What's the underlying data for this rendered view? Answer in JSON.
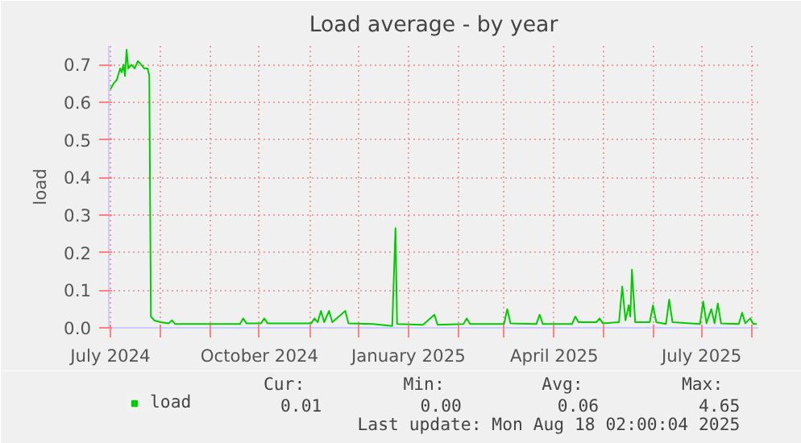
{
  "chart_data": {
    "type": "line",
    "title": "Load average - by year",
    "ylabel": "load",
    "xlim": [
      "2024-06-30",
      "2025-08-05"
    ],
    "xticks": [
      {
        "value": "2024-07-01",
        "label": "July 2024"
      },
      {
        "value": "2024-08-01",
        "label": null
      },
      {
        "value": "2024-09-01",
        "label": null
      },
      {
        "value": "2024-10-01",
        "label": "October 2024"
      },
      {
        "value": "2024-11-01",
        "label": null
      },
      {
        "value": "2024-12-01",
        "label": null
      },
      {
        "value": "2025-01-01",
        "label": "January 2025"
      },
      {
        "value": "2025-02-01",
        "label": null
      },
      {
        "value": "2025-03-01",
        "label": null
      },
      {
        "value": "2025-04-01",
        "label": "April 2025"
      },
      {
        "value": "2025-05-01",
        "label": null
      },
      {
        "value": "2025-06-01",
        "label": null
      },
      {
        "value": "2025-07-01",
        "label": "July 2025"
      },
      {
        "value": "2025-08-01",
        "label": null
      }
    ],
    "ylim": [
      0,
      0.75
    ],
    "yticks": [
      {
        "value": 0,
        "label": "0.0"
      },
      {
        "value": 0.1,
        "label": "0.1"
      },
      {
        "value": 0.2,
        "label": "0.2"
      },
      {
        "value": 0.3,
        "label": "0.3"
      },
      {
        "value": 0.4,
        "label": "0.4"
      },
      {
        "value": 0.5,
        "label": "0.5"
      },
      {
        "value": 0.6,
        "label": "0.6"
      },
      {
        "value": 0.7,
        "label": "0.7"
      }
    ],
    "grid": true,
    "legend": "bottom left",
    "line_style": "solid",
    "x": [
      "2024-07-01",
      "2024-07-03",
      "2024-07-05",
      "2024-07-07",
      "2024-07-08",
      "2024-07-09",
      "2024-07-10",
      "2024-07-11",
      "2024-07-12",
      "2024-07-14",
      "2024-07-16",
      "2024-07-18",
      "2024-07-20",
      "2024-07-22",
      "2024-07-24",
      "2024-07-25",
      "2024-07-26",
      "2024-07-28",
      "2024-08-01",
      "2024-08-06",
      "2024-08-08",
      "2024-08-10",
      "2024-09-01",
      "2024-09-19",
      "2024-09-21",
      "2024-09-23",
      "2024-10-02",
      "2024-10-04",
      "2024-10-06",
      "2024-11-02",
      "2024-11-04",
      "2024-11-06",
      "2024-11-08",
      "2024-11-10",
      "2024-11-13",
      "2024-11-15",
      "2024-11-23",
      "2024-11-25",
      "2024-12-10",
      "2024-12-22",
      "2024-12-24",
      "2024-12-25",
      "2025-01-10",
      "2025-01-17",
      "2025-01-19",
      "2025-02-04",
      "2025-02-06",
      "2025-02-08",
      "2025-03-01",
      "2025-03-03",
      "2025-03-05",
      "2025-03-21",
      "2025-03-23",
      "2025-03-25",
      "2025-04-12",
      "2025-04-14",
      "2025-04-16",
      "2025-04-27",
      "2025-04-29",
      "2025-05-01",
      "2025-05-11",
      "2025-05-13",
      "2025-05-15",
      "2025-05-17",
      "2025-05-18",
      "2025-05-19",
      "2025-05-21",
      "2025-05-30",
      "2025-06-01",
      "2025-06-03",
      "2025-06-09",
      "2025-06-11",
      "2025-06-13",
      "2025-06-30",
      "2025-07-02",
      "2025-07-04",
      "2025-07-07",
      "2025-07-09",
      "2025-07-11",
      "2025-07-13",
      "2025-07-24",
      "2025-07-26",
      "2025-07-28",
      "2025-07-31",
      "2025-08-02",
      "2025-08-04"
    ],
    "series": [
      {
        "name": "load",
        "color": "#00cc00",
        "values": [
          0.635,
          0.65,
          0.66,
          0.69,
          0.68,
          0.7,
          0.67,
          0.74,
          0.69,
          0.7,
          0.69,
          0.71,
          0.7,
          0.69,
          0.69,
          0.67,
          0.03,
          0.02,
          0.015,
          0.012,
          0.02,
          0.01,
          0.01,
          0.01,
          0.025,
          0.012,
          0.012,
          0.025,
          0.012,
          0.012,
          0.025,
          0.015,
          0.045,
          0.015,
          0.045,
          0.015,
          0.045,
          0.012,
          0.01,
          0.005,
          0.265,
          0.01,
          0.008,
          0.035,
          0.008,
          0.01,
          0.025,
          0.01,
          0.01,
          0.05,
          0.012,
          0.01,
          0.035,
          0.01,
          0.01,
          0.03,
          0.015,
          0.015,
          0.025,
          0.012,
          0.015,
          0.11,
          0.02,
          0.06,
          0.03,
          0.155,
          0.015,
          0.015,
          0.06,
          0.015,
          0.01,
          0.075,
          0.015,
          0.01,
          0.07,
          0.012,
          0.05,
          0.012,
          0.065,
          0.012,
          0.01,
          0.04,
          0.012,
          0.025,
          0.01,
          0.01
        ]
      }
    ],
    "annotations": [
      "Cur:",
      "Min:",
      "Avg:",
      "Max:",
      "0.01",
      "0.00",
      "0.06",
      "4.65",
      "Last update: Mon Aug 18 02:00:04 2025"
    ]
  }
}
